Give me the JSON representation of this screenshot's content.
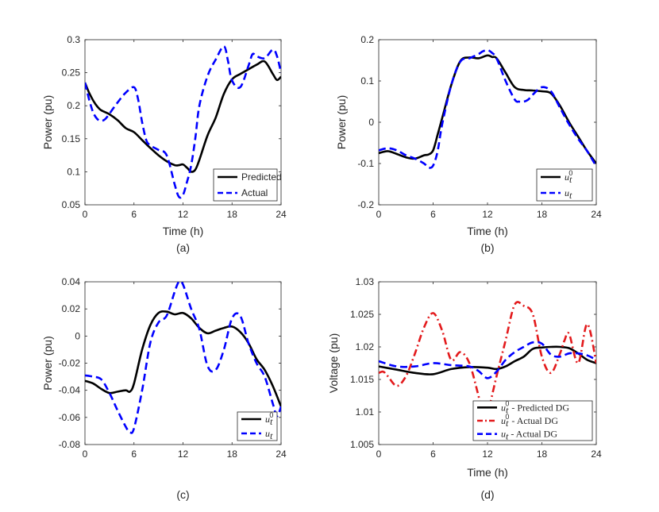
{
  "chart_data": [
    {
      "type": "line",
      "caption": "(a)",
      "xlabel": "Time (h)",
      "ylabel": "Power (pu)",
      "xlim": [
        0,
        24
      ],
      "ylim": [
        0.05,
        0.3
      ],
      "xticks": [
        "0",
        "6",
        "12",
        "18",
        "24"
      ],
      "yticks": [
        "0.05",
        "0.1",
        "0.15",
        "0.2",
        "0.25",
        "0.3"
      ],
      "legend_position": "bottom-right",
      "series": [
        {
          "name": "Predicted",
          "color": "#000000",
          "style": "solid",
          "x": [
            0,
            0.5,
            1,
            1.5,
            2,
            3,
            4,
            5,
            6,
            7,
            8,
            9,
            10,
            11,
            11.5,
            12,
            12.5,
            13,
            13.5,
            14,
            15,
            16,
            17,
            18,
            19,
            20,
            21,
            22,
            23,
            23.5,
            24
          ],
          "y": [
            0.235,
            0.22,
            0.208,
            0.199,
            0.193,
            0.187,
            0.178,
            0.166,
            0.16,
            0.148,
            0.136,
            0.125,
            0.116,
            0.11,
            0.11,
            0.111,
            0.106,
            0.1,
            0.103,
            0.118,
            0.155,
            0.182,
            0.218,
            0.24,
            0.248,
            0.255,
            0.262,
            0.267,
            0.248,
            0.239,
            0.244
          ]
        },
        {
          "name": "Actual",
          "color": "#0000ff",
          "style": "dashed",
          "x": [
            0,
            0.5,
            1,
            1.5,
            2,
            2.5,
            3,
            4,
            5,
            6,
            6.5,
            7,
            7.5,
            8,
            9,
            10,
            11,
            11.5,
            12,
            12.5,
            13,
            13.5,
            14,
            15,
            16,
            17,
            17.5,
            18,
            19,
            20,
            20.5,
            21,
            22,
            23,
            23.5,
            24
          ],
          "y": [
            0.235,
            0.21,
            0.19,
            0.18,
            0.177,
            0.18,
            0.188,
            0.205,
            0.22,
            0.228,
            0.21,
            0.175,
            0.148,
            0.14,
            0.133,
            0.125,
            0.08,
            0.062,
            0.065,
            0.085,
            0.11,
            0.15,
            0.2,
            0.245,
            0.27,
            0.29,
            0.268,
            0.238,
            0.228,
            0.26,
            0.278,
            0.275,
            0.272,
            0.285,
            0.275,
            0.25
          ]
        }
      ]
    },
    {
      "type": "line",
      "caption": "(b)",
      "xlabel": "Time (h)",
      "ylabel": "Power (pu)",
      "xlim": [
        0,
        24
      ],
      "ylim": [
        -0.2,
        0.2
      ],
      "xticks": [
        "0",
        "6",
        "12",
        "18",
        "24"
      ],
      "yticks": [
        "-0.2",
        "-0.1",
        "0",
        "0.1",
        "0.2"
      ],
      "legend_position": "bottom-right",
      "series": [
        {
          "name": "u_t^0",
          "color": "#000000",
          "style": "solid",
          "x": [
            0,
            1,
            2,
            3,
            4,
            5,
            5.5,
            6,
            6.5,
            7,
            8,
            9,
            10,
            11,
            12,
            12.5,
            13,
            14,
            15,
            16,
            17,
            18,
            19,
            20,
            21,
            22,
            23,
            24
          ],
          "y": [
            -0.075,
            -0.07,
            -0.077,
            -0.085,
            -0.088,
            -0.08,
            -0.078,
            -0.068,
            -0.03,
            0.01,
            0.09,
            0.148,
            0.157,
            0.155,
            0.162,
            0.158,
            0.155,
            0.12,
            0.085,
            0.078,
            0.077,
            0.075,
            0.07,
            0.04,
            0.0,
            -0.035,
            -0.07,
            -0.1
          ]
        },
        {
          "name": "u_t",
          "color": "#0000ff",
          "style": "dashed",
          "x": [
            0,
            1,
            2,
            3,
            4,
            5,
            5.5,
            6,
            6.5,
            7,
            8,
            9,
            10,
            11,
            11.5,
            12,
            12.5,
            13,
            14,
            15,
            15.5,
            16,
            16.5,
            17,
            18,
            19,
            20,
            21,
            22,
            23,
            24
          ],
          "y": [
            -0.068,
            -0.063,
            -0.068,
            -0.08,
            -0.088,
            -0.1,
            -0.11,
            -0.105,
            -0.07,
            -0.005,
            0.09,
            0.147,
            0.155,
            0.165,
            0.172,
            0.175,
            0.168,
            0.155,
            0.1,
            0.055,
            0.05,
            0.05,
            0.055,
            0.067,
            0.085,
            0.075,
            0.035,
            -0.005,
            -0.04,
            -0.07,
            -0.107
          ]
        }
      ]
    },
    {
      "type": "line",
      "caption": "(c)",
      "xlabel": "",
      "ylabel": "Power (pu)",
      "xlim": [
        0,
        24
      ],
      "ylim": [
        -0.08,
        0.04
      ],
      "xticks": [
        "0",
        "6",
        "12",
        "18",
        "24"
      ],
      "yticks": [
        "-0.08",
        "-0.06",
        "-0.04",
        "-0.02",
        "0",
        "0.02",
        "0.04"
      ],
      "legend_position": "bottom-right",
      "series": [
        {
          "name": "u_t^0",
          "color": "#000000",
          "style": "solid",
          "x": [
            0,
            1,
            2,
            3,
            4,
            5,
            5.5,
            6,
            7,
            8,
            9,
            10,
            11,
            12,
            13,
            14,
            15,
            16,
            17,
            18,
            19,
            20,
            21,
            22,
            23,
            24
          ],
          "y": [
            -0.033,
            -0.035,
            -0.039,
            -0.042,
            -0.041,
            -0.04,
            -0.041,
            -0.035,
            -0.01,
            0.008,
            0.017,
            0.018,
            0.016,
            0.017,
            0.013,
            0.006,
            0.002,
            0.004,
            0.006,
            0.007,
            0.003,
            -0.005,
            -0.017,
            -0.025,
            -0.037,
            -0.052
          ]
        },
        {
          "name": "u_t",
          "color": "#0000ff",
          "style": "dashed",
          "x": [
            0,
            1,
            2,
            3,
            4,
            5,
            5.5,
            6,
            7,
            8,
            9,
            10,
            11,
            11.5,
            12,
            13,
            14,
            15,
            16,
            17,
            18,
            19,
            20,
            21,
            22,
            23,
            23.5,
            24
          ],
          "y": [
            -0.029,
            -0.03,
            -0.032,
            -0.042,
            -0.055,
            -0.067,
            -0.071,
            -0.068,
            -0.04,
            -0.005,
            0.01,
            0.015,
            0.033,
            0.04,
            0.038,
            0.02,
            0.005,
            -0.022,
            -0.025,
            -0.01,
            0.013,
            0.015,
            -0.005,
            -0.02,
            -0.03,
            -0.05,
            -0.059,
            -0.052
          ]
        }
      ]
    },
    {
      "type": "line",
      "caption": "(d)",
      "xlabel": "Time (h)",
      "ylabel": "Voltage (pu)",
      "xlim": [
        0,
        24
      ],
      "ylim": [
        1.005,
        1.03
      ],
      "xticks": [
        "0",
        "6",
        "12",
        "18",
        "24"
      ],
      "yticks": [
        "1.005",
        "1.01",
        "1.015",
        "1.02",
        "1.025",
        "1.03"
      ],
      "legend_position": "bottom-right",
      "series": [
        {
          "name": "u_t^0 - Predicted DG",
          "color": "#000000",
          "style": "solid",
          "x": [
            0,
            2,
            4,
            6,
            8,
            10,
            12,
            13,
            14,
            15,
            16,
            17,
            18,
            19,
            20,
            21,
            22,
            23,
            24
          ],
          "y": [
            1.017,
            1.0165,
            1.016,
            1.0158,
            1.0166,
            1.0169,
            1.0168,
            1.0166,
            1.017,
            1.0178,
            1.0185,
            1.0197,
            1.0199,
            1.02,
            1.02,
            1.0198,
            1.019,
            1.018,
            1.0175
          ]
        },
        {
          "name": "u_t^0 - Actual DG",
          "color": "#e31a1c",
          "style": "dashdot",
          "x": [
            0,
            0.5,
            1,
            2,
            3,
            4,
            5,
            6,
            7,
            8,
            9,
            10,
            11,
            11.5,
            12,
            13,
            14,
            15,
            16,
            17,
            18,
            19,
            20,
            20.5,
            21,
            22,
            23,
            24
          ],
          "y": [
            1.016,
            1.0162,
            1.0155,
            1.014,
            1.0155,
            1.019,
            1.023,
            1.0252,
            1.0225,
            1.018,
            1.0192,
            1.0175,
            1.0125,
            1.0095,
            1.0098,
            1.0155,
            1.021,
            1.0265,
            1.0263,
            1.025,
            1.0185,
            1.016,
            1.019,
            1.021,
            1.022,
            1.0175,
            1.0235,
            1.0175
          ]
        },
        {
          "name": "u_t - Actual DG",
          "color": "#0000ff",
          "style": "dashed",
          "x": [
            0,
            2,
            4,
            6,
            8,
            10,
            11,
            12,
            13,
            14,
            15,
            16,
            17,
            18,
            19,
            20,
            21,
            22,
            23,
            24
          ],
          "y": [
            1.0178,
            1.017,
            1.017,
            1.0175,
            1.0172,
            1.017,
            1.0163,
            1.0152,
            1.0162,
            1.018,
            1.0192,
            1.02,
            1.0207,
            1.0205,
            1.0188,
            1.0185,
            1.019,
            1.019,
            1.0187,
            1.018
          ]
        }
      ]
    }
  ]
}
